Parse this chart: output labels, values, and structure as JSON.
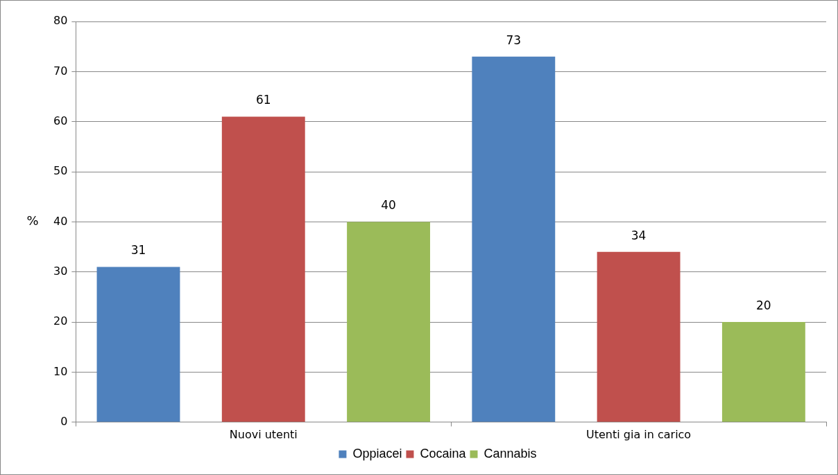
{
  "chart_data": {
    "type": "bar",
    "ylabel": "%",
    "categories": [
      "Nuovi utenti",
      "Utenti gia in carico"
    ],
    "series": [
      {
        "name": "Oppiacei",
        "color": "#4f81bd",
        "values": [
          31,
          73
        ]
      },
      {
        "name": "Cocaina",
        "color": "#c0504d",
        "values": [
          61,
          34
        ]
      },
      {
        "name": "Cannabis",
        "color": "#9bbb59",
        "values": [
          40,
          20
        ]
      }
    ],
    "ylim": [
      0,
      80
    ],
    "yticks": [
      0,
      10,
      20,
      30,
      40,
      50,
      60,
      70,
      80
    ],
    "grid": "y",
    "legend": "bottom",
    "data_labels": true
  }
}
